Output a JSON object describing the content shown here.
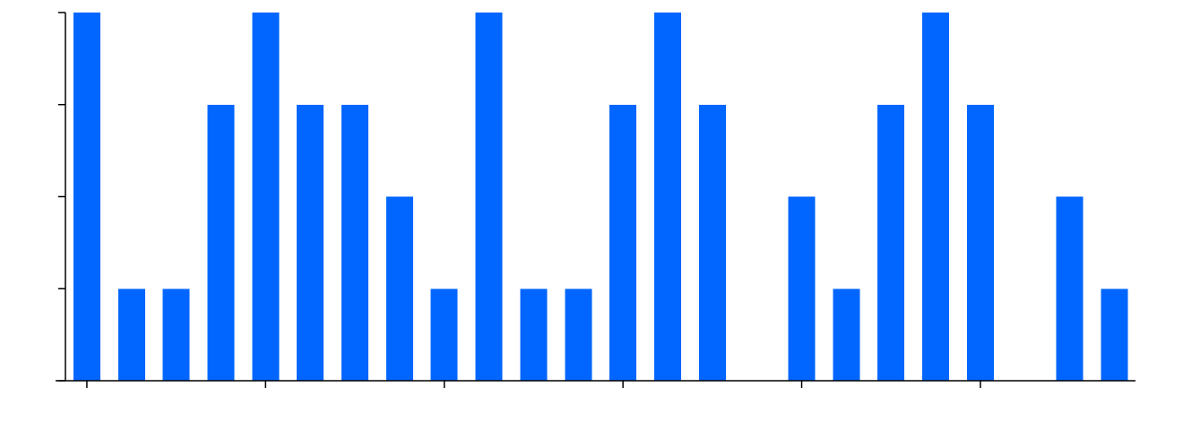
{
  "chart_data": {
    "type": "bar",
    "title": "",
    "xlabel": "",
    "ylabel": "",
    "values": [
      4,
      1,
      1,
      3,
      4,
      3,
      3,
      2,
      1,
      4,
      1,
      1,
      3,
      4,
      3,
      0,
      2,
      1,
      3,
      4,
      3,
      0,
      2,
      1
    ],
    "ylim": [
      0,
      4
    ],
    "y_ticks": [
      0,
      1,
      2,
      3,
      4
    ],
    "x_tick_positions": [
      0,
      4,
      8,
      12,
      16,
      20
    ],
    "tick_labels_shown": false,
    "grid": false,
    "legend": "none",
    "bar_color": "#0066ff"
  }
}
